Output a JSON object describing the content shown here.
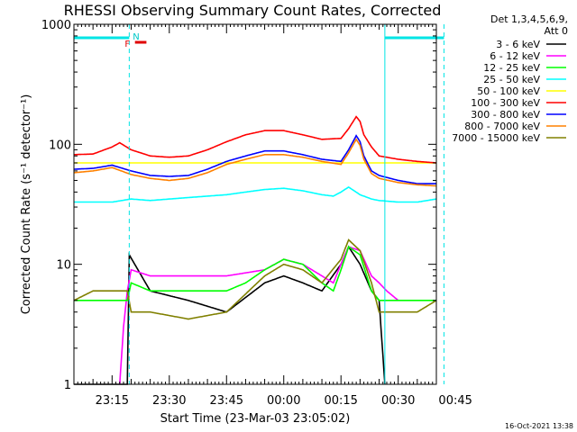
{
  "chart_data": {
    "type": "line",
    "title": "RHESSI Observing Summary Count Rates, Corrected",
    "xlabel": "Start Time (23-Mar-03 23:05:02)",
    "ylabel": "Corrected Count Rate (s⁻¹ detector⁻¹)",
    "y_scale": "log",
    "ylim": [
      1,
      1000
    ],
    "xlim_minutes_after_start": [
      0,
      95
    ],
    "x_tick_labels": [
      "23:15",
      "23:30",
      "23:45",
      "00:00",
      "00:15",
      "00:30",
      "00:45"
    ],
    "x_ticks_minutes": [
      10,
      25,
      40,
      55,
      70,
      85,
      100
    ],
    "y_tick_labels": [
      "1",
      "10",
      "100",
      "1000"
    ],
    "y_ticks": [
      1,
      10,
      100,
      1000
    ],
    "legend_header": [
      "Det 1,3,4,5,6,9,",
      "Att 0"
    ],
    "legend_placement": "right",
    "timestamp": "16-Oct-2021 13:38",
    "flag_labels": {
      "night": "N",
      "flare": "F"
    },
    "vertical_markers_minutes": [
      14.5,
      81.5,
      97
    ],
    "series": [
      {
        "name": "3 - 6 keV",
        "color": "#000000",
        "x": [
          0,
          14,
          14.5,
          20,
          30,
          40,
          50,
          55,
          60,
          65,
          70,
          72,
          75,
          78,
          80,
          81.5
        ],
        "y": [
          1,
          1,
          12,
          6,
          5,
          4,
          7,
          8,
          7,
          6,
          10,
          14,
          10,
          6,
          5,
          1
        ]
      },
      {
        "name": "6 - 12 keV",
        "color": "#ff00ff",
        "x": [
          12,
          13,
          14,
          15,
          20,
          30,
          40,
          50,
          55,
          60,
          65,
          68,
          70,
          72,
          75,
          78,
          80,
          82,
          85
        ],
        "y": [
          1,
          3,
          6,
          9,
          8,
          8,
          8,
          9,
          11,
          10,
          8,
          7,
          10,
          14,
          13,
          8,
          7,
          6,
          5
        ]
      },
      {
        "name": "12 - 25 keV",
        "color": "#00ff00",
        "x": [
          0,
          5,
          10,
          14,
          15,
          20,
          25,
          30,
          40,
          45,
          50,
          55,
          60,
          65,
          68,
          70,
          72,
          75,
          78,
          80,
          85,
          90,
          95
        ],
        "y": [
          5,
          5,
          5,
          5,
          7,
          6,
          6,
          6,
          6,
          7,
          9,
          11,
          10,
          7,
          6,
          9,
          14,
          12,
          6,
          5,
          5,
          5,
          5
        ]
      },
      {
        "name": "25 - 50 keV",
        "color": "#00ffff",
        "x": [
          0,
          10,
          15,
          20,
          30,
          40,
          45,
          50,
          55,
          60,
          65,
          68,
          70,
          72,
          75,
          78,
          80,
          85,
          90,
          95
        ],
        "y": [
          33,
          33,
          35,
          34,
          36,
          38,
          40,
          42,
          43,
          41,
          38,
          37,
          40,
          44,
          38,
          35,
          34,
          33,
          33,
          35
        ]
      },
      {
        "name": "50 - 100 keV",
        "color": "#ffff00",
        "x": [
          0
        ],
        "y": [
          70
        ]
      },
      {
        "name": "100 - 300 keV",
        "color": "#ff0000",
        "x": [
          0,
          5,
          10,
          12,
          15,
          20,
          25,
          30,
          35,
          40,
          45,
          50,
          55,
          60,
          65,
          70,
          72,
          74,
          75,
          76,
          78,
          80,
          85,
          90,
          95
        ],
        "y": [
          82,
          83,
          95,
          103,
          90,
          80,
          78,
          80,
          90,
          105,
          120,
          130,
          130,
          120,
          110,
          112,
          135,
          170,
          155,
          120,
          95,
          80,
          75,
          72,
          70
        ]
      },
      {
        "name": "300 - 800 keV",
        "color": "#0000ff",
        "x": [
          0,
          5,
          10,
          15,
          20,
          25,
          30,
          35,
          40,
          45,
          50,
          55,
          60,
          65,
          70,
          72,
          74,
          75,
          76,
          78,
          80,
          85,
          90,
          95
        ],
        "y": [
          62,
          63,
          67,
          60,
          55,
          54,
          55,
          62,
          72,
          80,
          88,
          88,
          82,
          75,
          72,
          90,
          118,
          105,
          80,
          60,
          55,
          50,
          47,
          47
        ]
      },
      {
        "name": "800 - 7000 keV",
        "color": "#ff8000",
        "x": [
          0,
          5,
          10,
          15,
          20,
          25,
          30,
          35,
          40,
          45,
          50,
          55,
          60,
          65,
          70,
          72,
          74,
          75,
          76,
          78,
          80,
          85,
          90,
          95
        ],
        "y": [
          58,
          60,
          64,
          56,
          52,
          50,
          52,
          58,
          68,
          75,
          82,
          82,
          78,
          72,
          68,
          85,
          110,
          98,
          75,
          57,
          52,
          48,
          46,
          45
        ]
      },
      {
        "name": "7000 - 15000 keV",
        "color": "#808000",
        "x": [
          0,
          5,
          10,
          14,
          15,
          20,
          30,
          40,
          50,
          55,
          60,
          65,
          70,
          72,
          75,
          78,
          80,
          85,
          90,
          95
        ],
        "y": [
          5,
          6,
          6,
          6,
          4,
          4,
          3.5,
          4,
          8,
          10,
          9,
          7,
          11,
          16,
          13,
          7,
          4,
          4,
          4,
          5
        ]
      }
    ]
  }
}
